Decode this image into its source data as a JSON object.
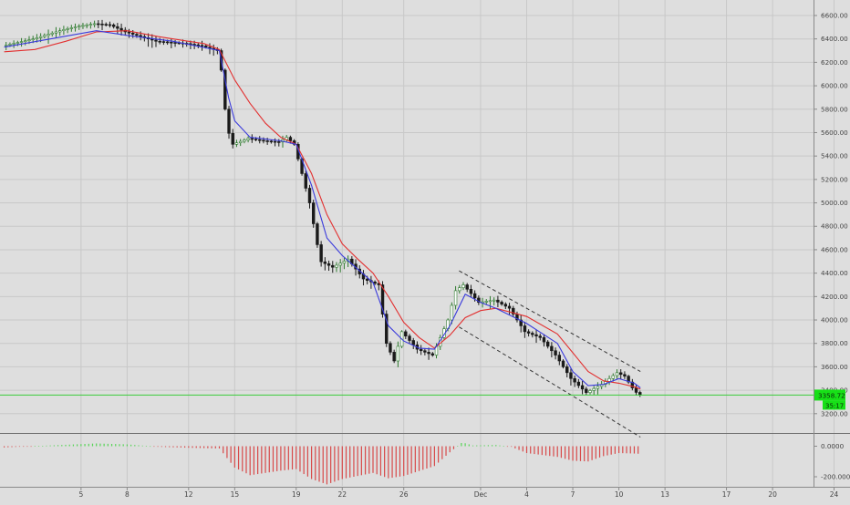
{
  "chart_data": [
    {
      "type": "candlestick",
      "title": "",
      "xlabel": "",
      "ylabel": "",
      "ylim": [
        3000,
        6750
      ],
      "price_ticks": [
        {
          "label": "6600.00",
          "value": 6600
        },
        {
          "label": "6400.00",
          "value": 6400
        },
        {
          "label": "6200.00",
          "value": 6200
        },
        {
          "label": "6000.00",
          "value": 6000
        },
        {
          "label": "5800.00",
          "value": 5800
        },
        {
          "label": "5600.00",
          "value": 5600
        },
        {
          "label": "5400.00",
          "value": 5400
        },
        {
          "label": "5200.00",
          "value": 5200
        },
        {
          "label": "5000.00",
          "value": 5000
        },
        {
          "label": "4800.00",
          "value": 4800
        },
        {
          "label": "4600.00",
          "value": 4600
        },
        {
          "label": "4400.00",
          "value": 4400
        },
        {
          "label": "4200.00",
          "value": 4200
        },
        {
          "label": "4000.00",
          "value": 4000
        },
        {
          "label": "3800.00",
          "value": 3800
        },
        {
          "label": "3600.00",
          "value": 3600
        },
        {
          "label": "3400.00",
          "value": 3400
        },
        {
          "label": "3200.00",
          "value": 3200
        }
      ],
      "x_ticks": [
        {
          "label": "5",
          "day": 5
        },
        {
          "label": "8",
          "day": 8
        },
        {
          "label": "12",
          "day": 12
        },
        {
          "label": "15",
          "day": 15
        },
        {
          "label": "19",
          "day": 19
        },
        {
          "label": "22",
          "day": 22
        },
        {
          "label": "26",
          "day": 26
        },
        {
          "label": "Dec",
          "day": 31
        },
        {
          "label": "4",
          "day": 34
        },
        {
          "label": "7",
          "day": 37
        },
        {
          "label": "10",
          "day": 40
        },
        {
          "label": "13",
          "day": 43
        },
        {
          "label": "17",
          "day": 47
        },
        {
          "label": "20",
          "day": 50
        },
        {
          "label": "24",
          "day": 54
        }
      ],
      "price_path": [
        [
          0,
          6340
        ],
        [
          1,
          6370
        ],
        [
          2,
          6400
        ],
        [
          3,
          6440
        ],
        [
          4,
          6480
        ],
        [
          5,
          6510
        ],
        [
          6,
          6530
        ],
        [
          7,
          6520
        ],
        [
          8,
          6460
        ],
        [
          9,
          6420
        ],
        [
          10,
          6380
        ],
        [
          11,
          6370
        ],
        [
          12,
          6360
        ],
        [
          13,
          6340
        ],
        [
          14,
          6300
        ],
        [
          14.3,
          6100
        ],
        [
          14.6,
          5650
        ],
        [
          15,
          5500
        ],
        [
          16,
          5550
        ],
        [
          17,
          5530
        ],
        [
          18,
          5520
        ],
        [
          18.5,
          5560
        ],
        [
          19,
          5500
        ],
        [
          20,
          5000
        ],
        [
          20.7,
          4500
        ],
        [
          21.5,
          4450
        ],
        [
          22.5,
          4520
        ],
        [
          23.5,
          4350
        ],
        [
          24.5,
          4300
        ],
        [
          25,
          3800
        ],
        [
          25.5,
          3650
        ],
        [
          26,
          3900
        ],
        [
          27,
          3750
        ],
        [
          28,
          3700
        ],
        [
          29,
          4000
        ],
        [
          29.5,
          4250
        ],
        [
          30,
          4300
        ],
        [
          31,
          4150
        ],
        [
          32,
          4170
        ],
        [
          33,
          4100
        ],
        [
          34,
          3900
        ],
        [
          35,
          3850
        ],
        [
          36,
          3700
        ],
        [
          37,
          3500
        ],
        [
          38,
          3380
        ],
        [
          39,
          3450
        ],
        [
          40,
          3550
        ],
        [
          40.5,
          3520
        ],
        [
          41,
          3420
        ],
        [
          41.4,
          3358.72
        ]
      ],
      "ma_blue_path": [
        [
          0,
          6330
        ],
        [
          3,
          6400
        ],
        [
          6,
          6470
        ],
        [
          8,
          6430
        ],
        [
          11,
          6380
        ],
        [
          14,
          6300
        ],
        [
          14.6,
          5900
        ],
        [
          15,
          5700
        ],
        [
          16,
          5560
        ],
        [
          18,
          5530
        ],
        [
          19,
          5500
        ],
        [
          20,
          5150
        ],
        [
          21,
          4700
        ],
        [
          22,
          4550
        ],
        [
          24,
          4320
        ],
        [
          25,
          3950
        ],
        [
          26,
          3820
        ],
        [
          27,
          3760
        ],
        [
          28,
          3750
        ],
        [
          29,
          3950
        ],
        [
          30,
          4220
        ],
        [
          31,
          4150
        ],
        [
          32,
          4100
        ],
        [
          34,
          3970
        ],
        [
          36,
          3800
        ],
        [
          37,
          3560
        ],
        [
          38,
          3440
        ],
        [
          39,
          3450
        ],
        [
          40,
          3500
        ],
        [
          41,
          3460
        ],
        [
          41.4,
          3420
        ]
      ],
      "ma_red_path": [
        [
          0,
          6290
        ],
        [
          2,
          6310
        ],
        [
          4,
          6380
        ],
        [
          6,
          6460
        ],
        [
          8,
          6470
        ],
        [
          10,
          6420
        ],
        [
          12,
          6380
        ],
        [
          13,
          6360
        ],
        [
          14,
          6310
        ],
        [
          15,
          6050
        ],
        [
          16,
          5850
        ],
        [
          17,
          5680
        ],
        [
          18,
          5560
        ],
        [
          19,
          5500
        ],
        [
          20,
          5250
        ],
        [
          21,
          4900
        ],
        [
          22,
          4650
        ],
        [
          23,
          4520
        ],
        [
          24,
          4400
        ],
        [
          25,
          4200
        ],
        [
          26,
          3980
        ],
        [
          27,
          3850
        ],
        [
          28,
          3760
        ],
        [
          29,
          3870
        ],
        [
          30,
          4020
        ],
        [
          31,
          4080
        ],
        [
          32,
          4100
        ],
        [
          34,
          4030
        ],
        [
          36,
          3880
        ],
        [
          37,
          3720
        ],
        [
          38,
          3560
        ],
        [
          39,
          3480
        ],
        [
          40,
          3460
        ],
        [
          41,
          3430
        ],
        [
          41.4,
          3410
        ]
      ],
      "current_price": "3358.72",
      "countdown": "35:17",
      "channel_lines": [
        [
          [
            29.6,
            4420
          ],
          [
            41.4,
            3560
          ]
        ],
        [
          [
            29.6,
            3940
          ],
          [
            41.4,
            3000
          ]
        ]
      ],
      "colors": {
        "background": "#dedede",
        "up_candle": "#2f7a2f",
        "down_candle": "#1a1a1a",
        "ma_blue": "#3a3adc",
        "ma_red": "#e23030",
        "price_line": "#3acc3a",
        "price_badge": "#17e017",
        "histogram_pos": "#56d456",
        "histogram_neg": "#d84a4a",
        "grid": "#c8c8c8",
        "channel": "#333333"
      },
      "grid": true
    },
    {
      "type": "histogram",
      "title": "",
      "ylim": [
        -290,
        40
      ],
      "ticks": [
        {
          "label": "0.0000",
          "value": 0
        },
        {
          "label": "-200.0000",
          "value": -200
        }
      ],
      "values_by_day": [
        [
          0,
          -8
        ],
        [
          3,
          5
        ],
        [
          6,
          18
        ],
        [
          8,
          12
        ],
        [
          10,
          -4
        ],
        [
          12,
          -10
        ],
        [
          14,
          -15
        ],
        [
          15,
          -140
        ],
        [
          16,
          -190
        ],
        [
          18,
          -160
        ],
        [
          19,
          -150
        ],
        [
          20,
          -215
        ],
        [
          21,
          -250
        ],
        [
          22,
          -215
        ],
        [
          24,
          -175
        ],
        [
          25,
          -210
        ],
        [
          26,
          -195
        ],
        [
          28,
          -130
        ],
        [
          29,
          -40
        ],
        [
          29.8,
          25
        ],
        [
          30.5,
          5
        ],
        [
          32,
          8
        ],
        [
          33,
          -4
        ],
        [
          34,
          -45
        ],
        [
          36,
          -70
        ],
        [
          37,
          -95
        ],
        [
          38,
          -100
        ],
        [
          39,
          -65
        ],
        [
          40,
          -45
        ],
        [
          41,
          -48
        ],
        [
          41.4,
          -50
        ]
      ]
    }
  ]
}
